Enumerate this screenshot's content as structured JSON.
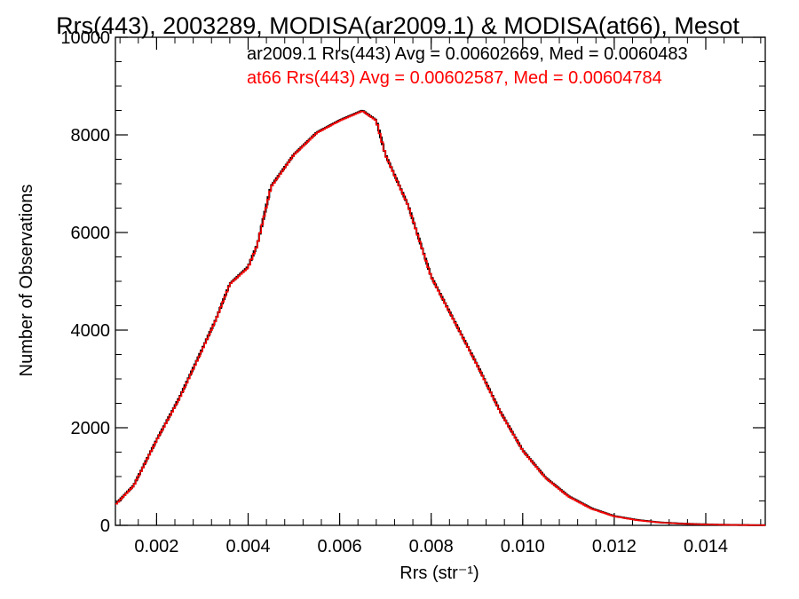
{
  "chart_data": {
    "type": "line",
    "title": "Rrs(443), 2003289, MODISA(ar2009.1) & MODISA(at66), Mesot",
    "xlabel": "Rrs (str⁻¹)",
    "ylabel": "Number of Observations",
    "xlim": [
      0.0011,
      0.0153
    ],
    "ylim": [
      0,
      10000
    ],
    "x_ticks": [
      "0.002",
      "0.004",
      "0.006",
      "0.008",
      "0.010",
      "0.012",
      "0.014"
    ],
    "y_ticks": [
      "0",
      "2000",
      "4000",
      "6000",
      "8000",
      "10000"
    ],
    "grid": false,
    "legend_position": "top-right",
    "annotations": [
      {
        "text": "ar2009.1 Rrs(443) Avg = 0.00602669, Med = 0.0060483",
        "color": "#000000"
      },
      {
        "text": "at66 Rrs(443) Avg = 0.00602587, Med = 0.00604784",
        "color": "#ff0000"
      }
    ],
    "x": [
      0.0011,
      0.0015,
      0.002,
      0.0025,
      0.003,
      0.0033,
      0.0036,
      0.004,
      0.0042,
      0.0045,
      0.005,
      0.0055,
      0.006,
      0.0065,
      0.0068,
      0.007,
      0.0075,
      0.008,
      0.0085,
      0.009,
      0.0095,
      0.01,
      0.0105,
      0.011,
      0.0115,
      0.012,
      0.0125,
      0.013,
      0.0135,
      0.014,
      0.0145,
      0.015,
      0.0153
    ],
    "series": [
      {
        "name": "ar2009.1",
        "color": "#000000",
        "values": [
          430,
          820,
          1750,
          2620,
          3620,
          4230,
          4950,
          5300,
          5750,
          6950,
          7600,
          8050,
          8300,
          8500,
          8300,
          7600,
          6550,
          5100,
          4200,
          3300,
          2350,
          1540,
          980,
          600,
          350,
          190,
          110,
          60,
          35,
          20,
          10,
          5,
          5
        ]
      },
      {
        "name": "at66",
        "color": "#ff0000",
        "values": [
          420,
          810,
          1740,
          2600,
          3600,
          4220,
          4940,
          5280,
          5740,
          6930,
          7590,
          8040,
          8290,
          8490,
          8290,
          7590,
          6540,
          5090,
          4190,
          3290,
          2340,
          1530,
          970,
          590,
          340,
          185,
          105,
          58,
          33,
          18,
          9,
          5,
          4
        ]
      }
    ]
  }
}
